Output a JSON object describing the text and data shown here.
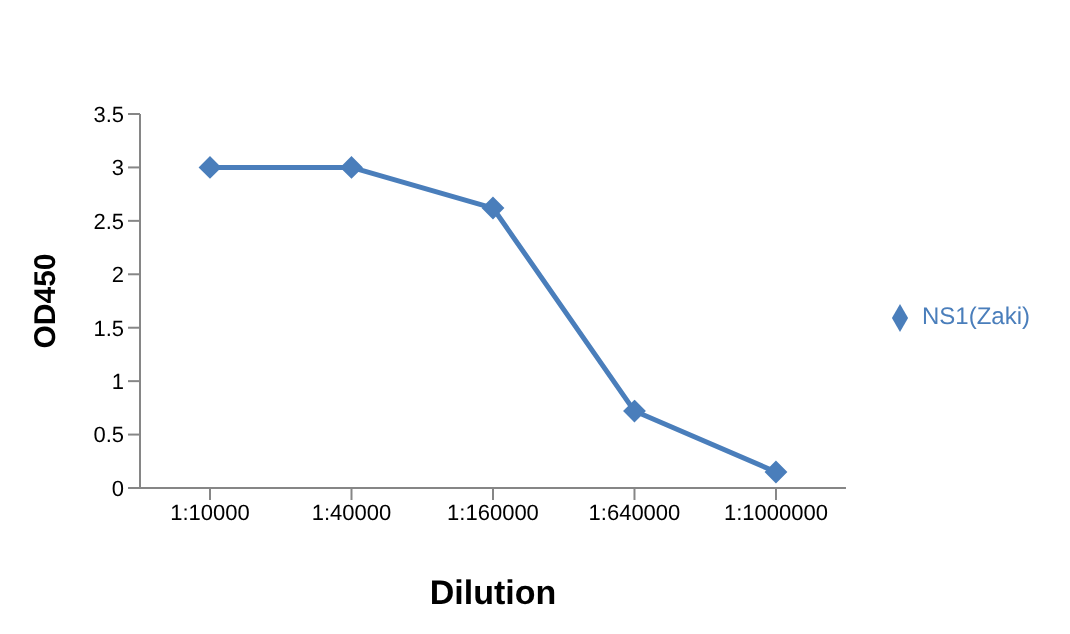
{
  "chart_data": {
    "type": "line",
    "xlabel": "Dilution",
    "ylabel": "OD450",
    "categories": [
      "1:10000",
      "1:40000",
      "1:160000",
      "1:640000",
      "1:1000000"
    ],
    "series": [
      {
        "name": "NS1(Zaki)",
        "color": "#4a7ebb",
        "values": [
          3,
          3,
          2.62,
          0.72,
          0.15
        ]
      }
    ],
    "ylim": [
      0,
      3.5
    ],
    "yticks": [
      0,
      0.5,
      1,
      1.5,
      2,
      2.5,
      3,
      3.5
    ],
    "grid": false,
    "legend": "right",
    "marker": "diamond",
    "line_style": "solid"
  }
}
